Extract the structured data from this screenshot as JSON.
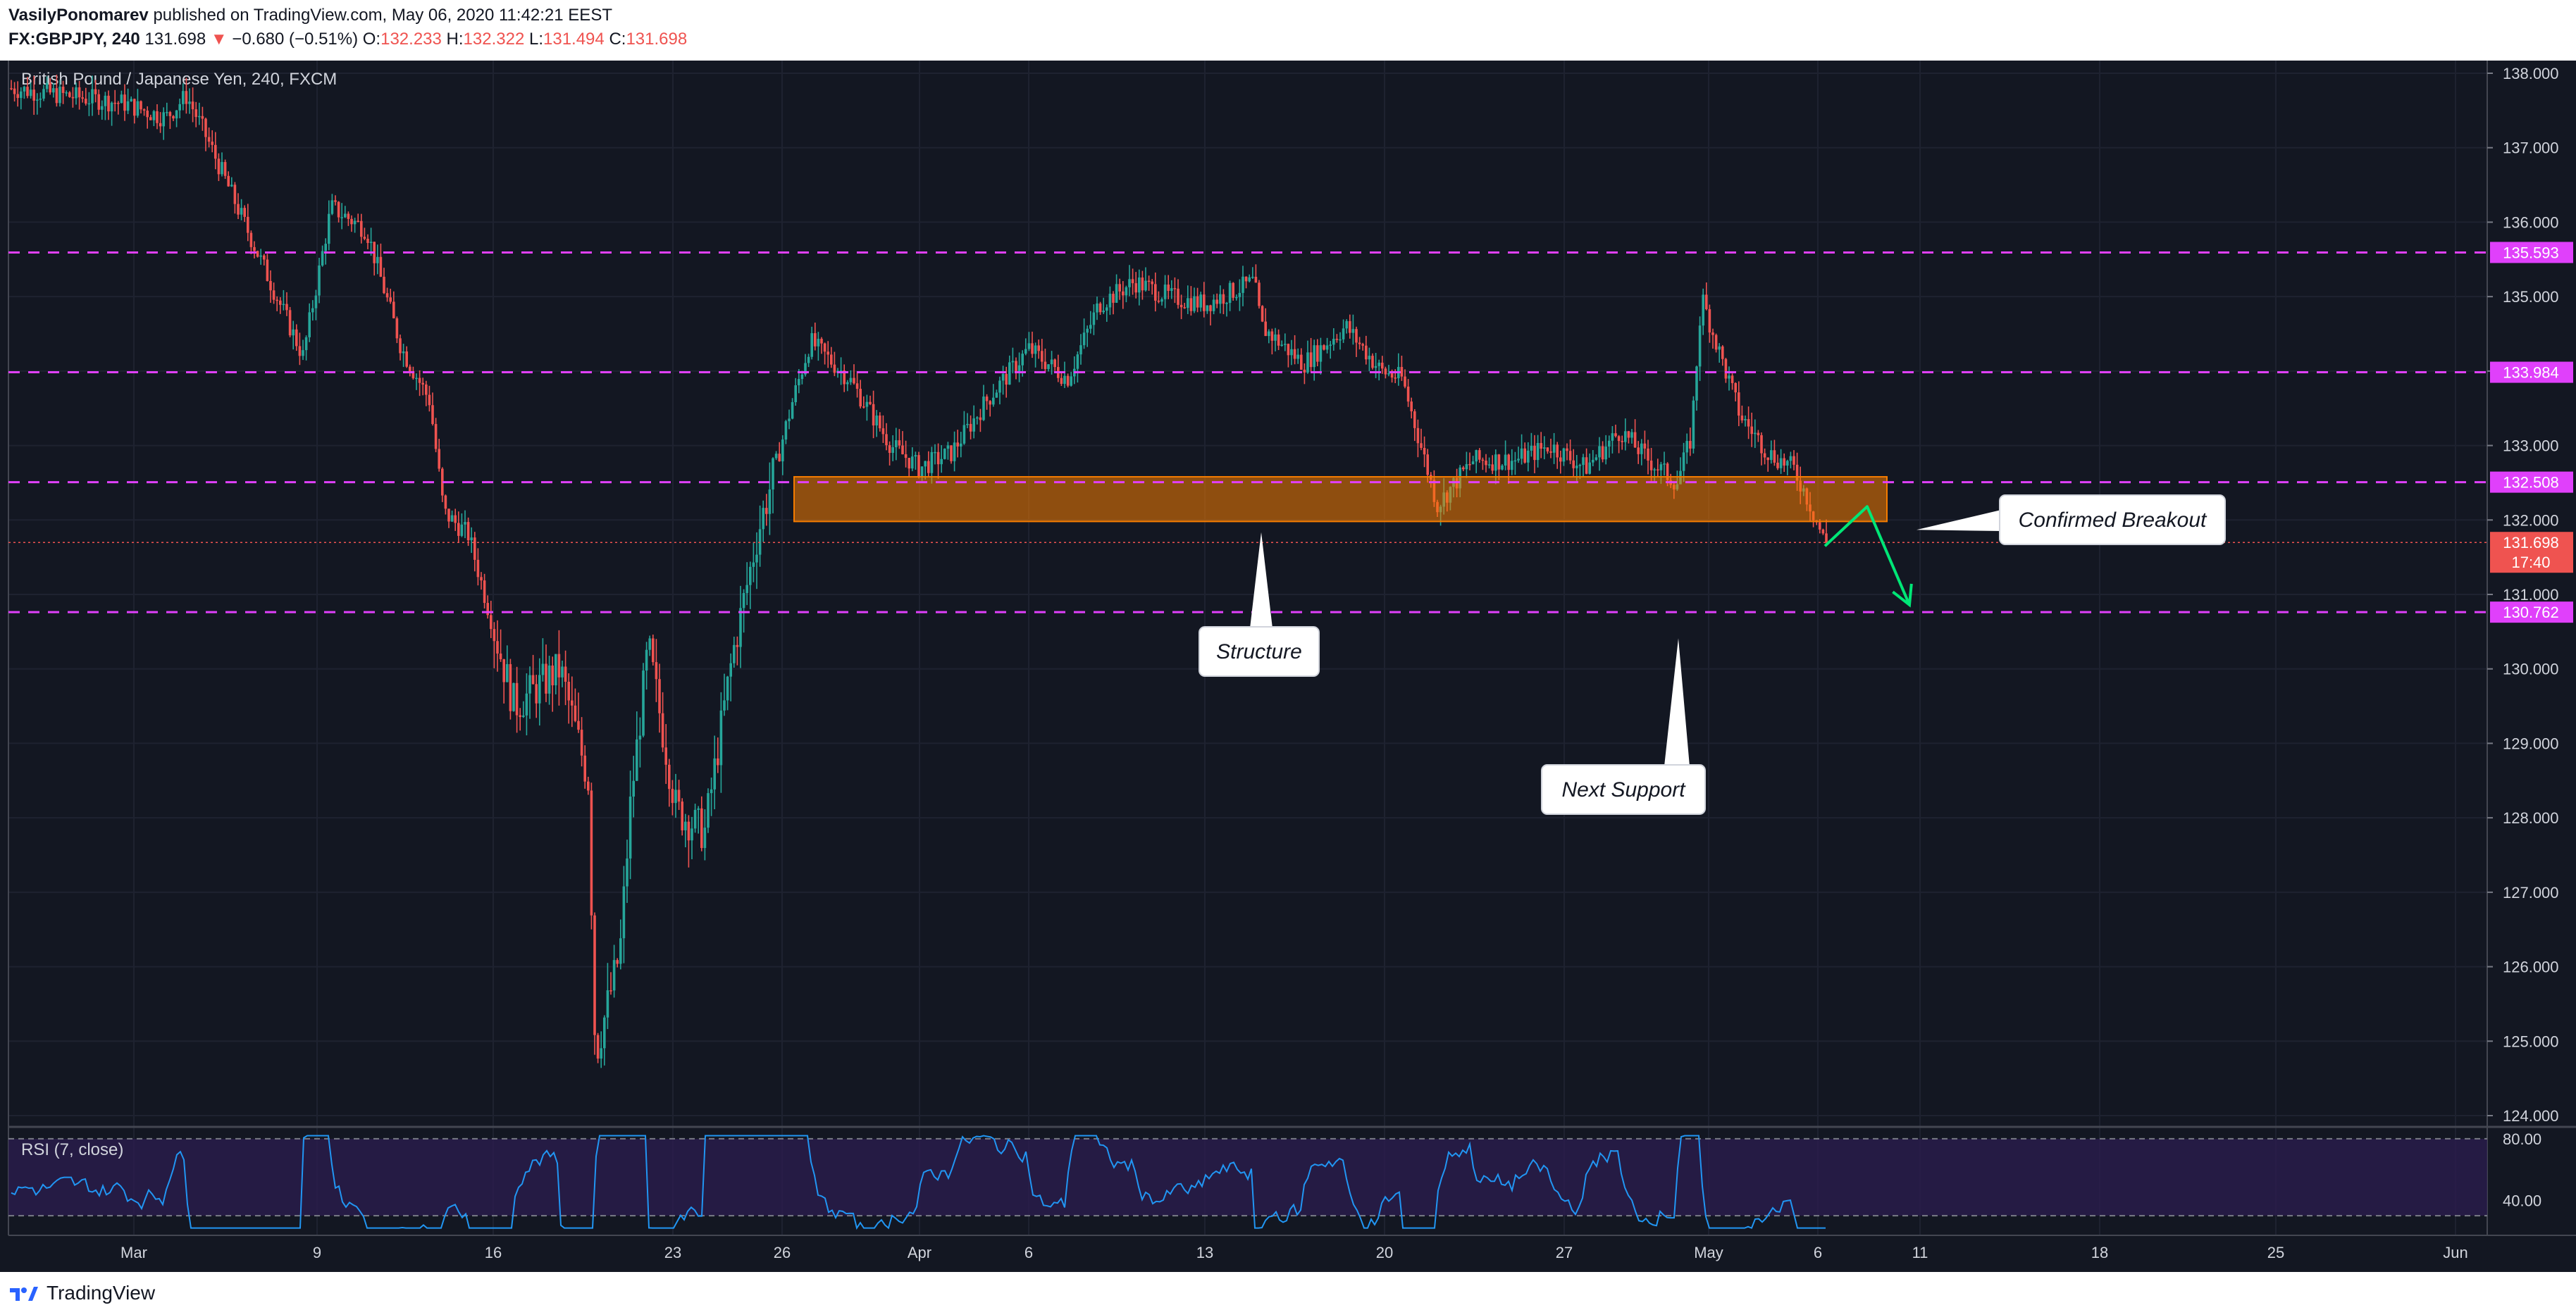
{
  "header": {
    "author": "VasilyPonomarev",
    "published": "published on TradingView.com, May 06, 2020 11:42:21 EEST",
    "symbol": "FX:GBPJPY, 240",
    "last": "131.698",
    "change": "−0.680 (−0.51%)",
    "o_label": "O:",
    "o_value": "132.233",
    "h_label": "H:",
    "h_value": "132.322",
    "l_label": "L:",
    "l_value": "131.494",
    "c_label": "C:",
    "c_value": "131.698"
  },
  "footer": {
    "brand": "TradingView"
  },
  "colors": {
    "background": "#131722",
    "bull": "#26a69a",
    "bear": "#ef5350",
    "level_line": "#e040fb",
    "zone_fill": "#f57c00",
    "rsi_line": "#2196f3",
    "rsi_band": "#2a1d4e",
    "arrow": "#00e676"
  },
  "chart_data": {
    "type": "candlestick",
    "title": "British Pound / Japanese Yen, 240, FXCM",
    "ylim": [
      124.0,
      138.0
    ],
    "y_ticks": [
      "138.000",
      "137.000",
      "136.000",
      "135.000",
      "134.000",
      "133.000",
      "132.000",
      "131.000",
      "130.000",
      "129.000",
      "128.000",
      "127.000",
      "126.000",
      "125.000",
      "124.000"
    ],
    "x_ticks": [
      "Mar",
      "9",
      "16",
      "23",
      "26",
      "Apr",
      "6",
      "13",
      "20",
      "27",
      "May",
      "6",
      "11",
      "18",
      "25",
      "Jun"
    ],
    "price_path": [
      {
        "date": "Feb 28",
        "price": 137.8
      },
      {
        "date": "Mar 2",
        "price": 137.6
      },
      {
        "date": "Mar 4",
        "price": 137.4
      },
      {
        "date": "Mar 5",
        "price": 137.7
      },
      {
        "date": "Mar 6",
        "price": 137.1
      },
      {
        "date": "Mar 9",
        "price": 134.2
      },
      {
        "date": "Mar 10",
        "price": 136.2
      },
      {
        "date": "Mar 11",
        "price": 135.9
      },
      {
        "date": "Mar 12",
        "price": 134.3
      },
      {
        "date": "Mar 13",
        "price": 133.6
      },
      {
        "date": "Mar 14",
        "price": 132.1
      },
      {
        "date": "Mar 16",
        "price": 131.8
      },
      {
        "date": "Mar 17",
        "price": 129.5
      },
      {
        "date": "Mar 18",
        "price": 130.0
      },
      {
        "date": "Mar 19",
        "price": 128.5
      },
      {
        "date": "Mar 19b",
        "price": 124.8
      },
      {
        "date": "Mar 20",
        "price": 126.2
      },
      {
        "date": "Mar 21",
        "price": 128.2
      },
      {
        "date": "Mar 22",
        "price": 130.3
      },
      {
        "date": "Mar 23",
        "price": 128.1
      },
      {
        "date": "Mar 24",
        "price": 127.8
      },
      {
        "date": "Mar 25",
        "price": 130.2
      },
      {
        "date": "Mar 26",
        "price": 131.8
      },
      {
        "date": "Mar 27",
        "price": 133.6
      },
      {
        "date": "Mar 29",
        "price": 134.4
      },
      {
        "date": "Mar 30",
        "price": 133.9
      },
      {
        "date": "Mar 31",
        "price": 133.0
      },
      {
        "date": "Apr 1",
        "price": 132.7
      },
      {
        "date": "Apr 2",
        "price": 132.9
      },
      {
        "date": "Apr 3",
        "price": 133.6
      },
      {
        "date": "Apr 6",
        "price": 134.3
      },
      {
        "date": "Apr 7",
        "price": 133.9
      },
      {
        "date": "Apr 8",
        "price": 134.9
      },
      {
        "date": "Apr 9",
        "price": 135.2
      },
      {
        "date": "Apr 10",
        "price": 135.0
      },
      {
        "date": "Apr 13",
        "price": 134.9
      },
      {
        "date": "Apr 14",
        "price": 135.2
      },
      {
        "date": "Apr 15",
        "price": 134.6
      },
      {
        "date": "Apr 16",
        "price": 134.1
      },
      {
        "date": "Apr 17",
        "price": 134.6
      },
      {
        "date": "Apr 18",
        "price": 134.0
      },
      {
        "date": "Apr 20",
        "price": 133.9
      },
      {
        "date": "Apr 21",
        "price": 132.2
      },
      {
        "date": "Apr 22",
        "price": 132.8
      },
      {
        "date": "Apr 23",
        "price": 132.8
      },
      {
        "date": "Apr 24",
        "price": 133.0
      },
      {
        "date": "Apr 26",
        "price": 132.7
      },
      {
        "date": "Apr 27",
        "price": 133.2
      },
      {
        "date": "Apr 28",
        "price": 132.8
      },
      {
        "date": "Apr 29",
        "price": 132.5
      },
      {
        "date": "Apr 30",
        "price": 133.1
      },
      {
        "date": "May 1",
        "price": 135.0
      },
      {
        "date": "May 1b",
        "price": 134.4
      },
      {
        "date": "May 2",
        "price": 133.4
      },
      {
        "date": "May 4",
        "price": 132.9
      },
      {
        "date": "May 5",
        "price": 132.7
      },
      {
        "date": "May 5b",
        "price": 132.3
      },
      {
        "date": "May 6",
        "price": 131.698
      }
    ],
    "levels": [
      {
        "label": "135.593",
        "price": 135.593
      },
      {
        "label": "133.984",
        "price": 133.984
      },
      {
        "label": "132.508",
        "price": 132.508
      },
      {
        "label": "130.762",
        "price": 130.762
      }
    ],
    "current_price": {
      "label": "131.698",
      "price": 131.698,
      "countdown": "17:40"
    },
    "zone": {
      "low": 131.98,
      "high": 132.58,
      "start": "Mar 26",
      "end": "May 8"
    },
    "projection": [
      {
        "date": "May 6",
        "price": 131.65
      },
      {
        "date": "May 8",
        "price": 132.18
      },
      {
        "date": "May 11",
        "price": 130.86
      }
    ],
    "annotations": [
      {
        "text": "Structure",
        "anchor_date": "Apr 15",
        "anchor_price": 131.95
      },
      {
        "text": "Next Support",
        "anchor_date": "Apr 29",
        "anchor_price": 130.6
      },
      {
        "text": "Confirmed Breakout",
        "anchor_date": "May 9",
        "anchor_price": 132.0
      }
    ],
    "rsi": {
      "label": "RSI (7, close)",
      "upper": 80,
      "lower": 30,
      "y_ticks": [
        "80.00",
        "40.00"
      ]
    }
  }
}
